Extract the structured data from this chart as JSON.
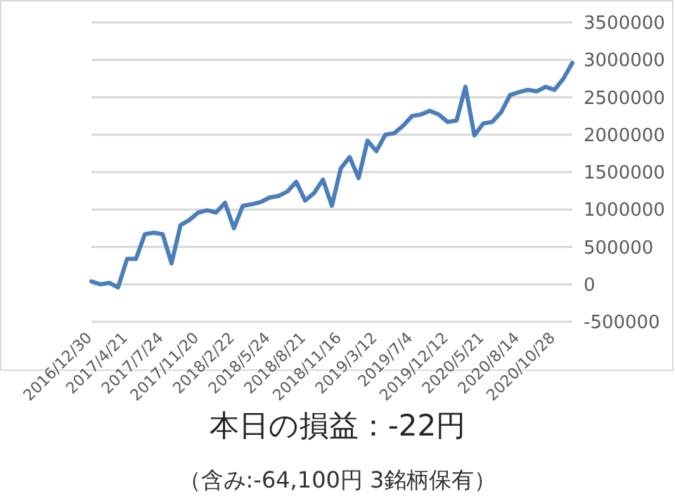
{
  "chart_data": {
    "type": "line",
    "title": "本日の損益：-22円",
    "subtitle": "（含み:-64,100円  3銘柄保有）",
    "categories": [
      "2016/12/30",
      null,
      null,
      null,
      "2017/4/21",
      null,
      null,
      null,
      "2017/7/24",
      null,
      null,
      null,
      "2017/11/20",
      null,
      null,
      null,
      "2018/2/22",
      null,
      null,
      null,
      "2018/5/24",
      null,
      null,
      null,
      "2018/8/21",
      null,
      null,
      null,
      "2018/11/16",
      null,
      null,
      null,
      "2019/3/12",
      null,
      null,
      null,
      "2019/7/4",
      null,
      null,
      null,
      "2019/12/12",
      null,
      null,
      null,
      "2020/5/21",
      null,
      null,
      null,
      "2020/8/14",
      null,
      null,
      null,
      "2020/10/28",
      null,
      null
    ],
    "series": [
      {
        "color": "#4a7ebb",
        "values": [
          40000,
          0,
          20000,
          -40000,
          340000,
          340000,
          670000,
          690000,
          670000,
          280000,
          790000,
          860000,
          960000,
          990000,
          960000,
          1090000,
          750000,
          1050000,
          1070000,
          1100000,
          1160000,
          1180000,
          1240000,
          1370000,
          1120000,
          1220000,
          1400000,
          1050000,
          1550000,
          1700000,
          1420000,
          1920000,
          1780000,
          2000000,
          2020000,
          2120000,
          2250000,
          2270000,
          2320000,
          2270000,
          2170000,
          2190000,
          2640000,
          1990000,
          2150000,
          2170000,
          2300000,
          2530000,
          2570000,
          2600000,
          2580000,
          2640000,
          2600000,
          2750000,
          2960000
        ]
      }
    ],
    "ylim": [
      -500000,
      3500000
    ],
    "yticks": [
      -500000,
      0,
      500000,
      1000000,
      1500000,
      2000000,
      2500000,
      3000000,
      3500000
    ],
    "grid": "y",
    "marker": "none",
    "line_style": "solid"
  }
}
